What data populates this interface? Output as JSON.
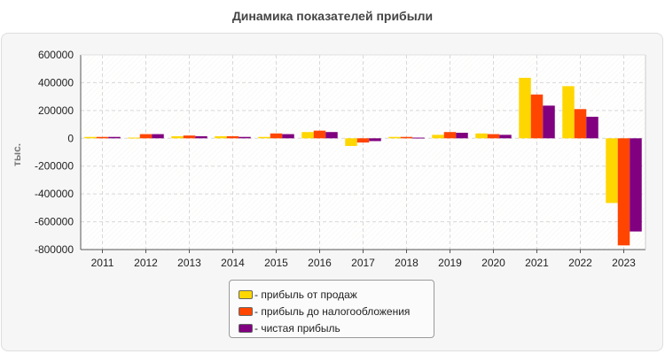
{
  "chart_data": {
    "type": "bar",
    "title": "Динамика показателей прибыли",
    "ylabel": "тыс.",
    "xlabel": "",
    "ylim": [
      -800000,
      600000
    ],
    "yticks": [
      600000,
      400000,
      200000,
      0,
      -200000,
      -400000,
      -600000,
      -800000
    ],
    "grid": true,
    "legend_position": "bottom",
    "categories": [
      "2011",
      "2012",
      "2013",
      "2014",
      "2015",
      "2016",
      "2017",
      "2018",
      "2019",
      "2020",
      "2021",
      "2022",
      "2023"
    ],
    "series": [
      {
        "name": "- прибыль от продаж",
        "color": "#ffd700",
        "values": [
          10000,
          5000,
          15000,
          15000,
          10000,
          45000,
          -55000,
          10000,
          25000,
          35000,
          435000,
          375000,
          -465000
        ]
      },
      {
        "name": "- прибыль до налогообложения",
        "color": "#ff4500",
        "values": [
          10000,
          30000,
          20000,
          15000,
          35000,
          55000,
          -30000,
          10000,
          45000,
          30000,
          315000,
          210000,
          -770000
        ]
      },
      {
        "name": "- чистая прибыль",
        "color": "#800080",
        "values": [
          10000,
          30000,
          15000,
          10000,
          30000,
          45000,
          -20000,
          5000,
          40000,
          25000,
          235000,
          155000,
          -670000
        ]
      }
    ]
  }
}
